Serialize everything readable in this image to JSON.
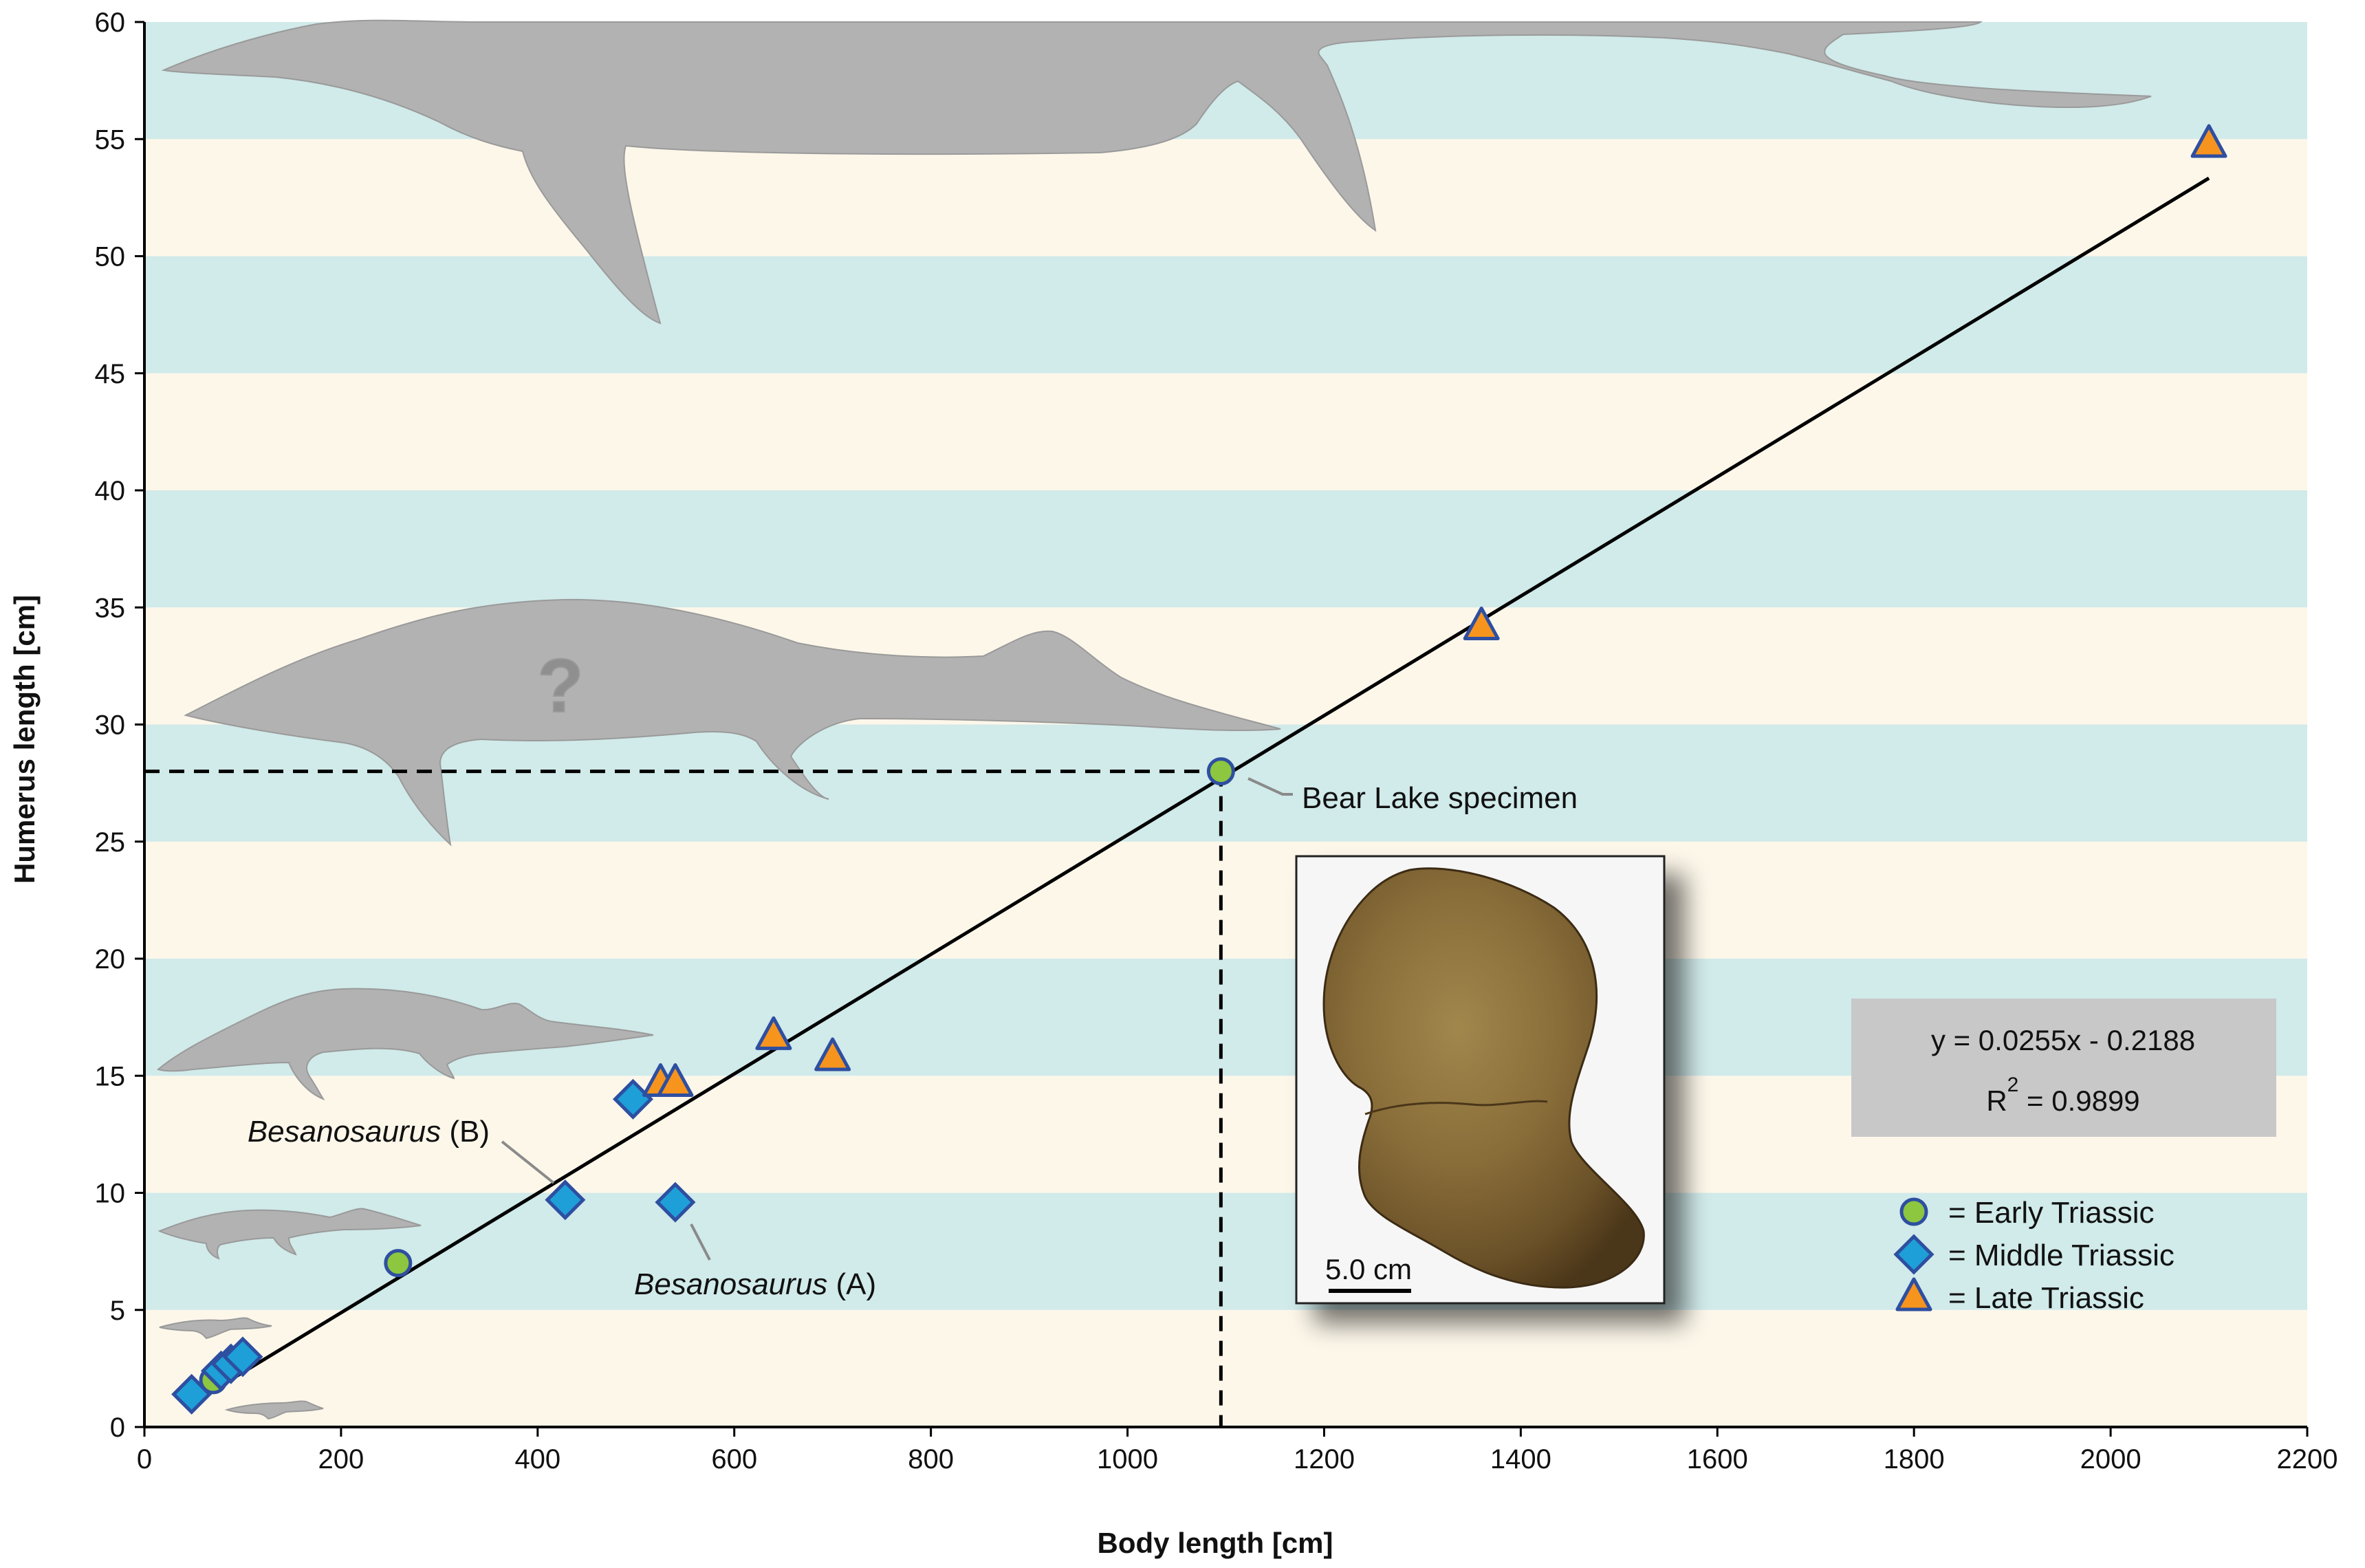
{
  "chart_data": {
    "type": "scatter",
    "xlabel": "Body length [cm]",
    "ylabel": "Humerus length [cm]",
    "xlim": [
      0,
      2200
    ],
    "ylim": [
      0,
      60
    ],
    "x_ticks": [
      "0",
      "200",
      "400",
      "600",
      "800",
      "1000",
      "1200",
      "1400",
      "1600",
      "1800",
      "2000",
      "2200"
    ],
    "y_ticks": [
      "0",
      "5",
      "10",
      "15",
      "20",
      "25",
      "30",
      "35",
      "40",
      "45",
      "50",
      "55",
      "60"
    ],
    "band_colors": [
      "#fdf7ea",
      "#d1eaea"
    ],
    "series": [
      {
        "name": "Early Triassic",
        "marker": "circle",
        "color": "#8dc63f",
        "edge_color": "#2e4fa0",
        "points": [
          [
            70,
            2.0
          ],
          [
            258,
            7.0
          ],
          [
            1095,
            28.0
          ]
        ]
      },
      {
        "name": "Middle Triassic",
        "marker": "diamond",
        "color": "#1e9fd8",
        "edge_color": "#2e4fa0",
        "points": [
          [
            48,
            1.4
          ],
          [
            78,
            2.4
          ],
          [
            88,
            2.7
          ],
          [
            100,
            3.0
          ],
          [
            428,
            9.7
          ],
          [
            497,
            14.0
          ],
          [
            540,
            9.6
          ]
        ]
      },
      {
        "name": "Late Triassic",
        "marker": "triangle",
        "color": "#f7941d",
        "edge_color": "#2e4fa0",
        "points": [
          [
            525,
            14.7
          ],
          [
            540,
            14.7
          ],
          [
            640,
            16.7
          ],
          [
            700,
            15.8
          ],
          [
            1360,
            34.2
          ],
          [
            2100,
            54.8
          ]
        ]
      }
    ],
    "trendline": {
      "slope": 0.0255,
      "intercept": -0.2188,
      "x_range": [
        48,
        2100
      ],
      "equation": "y = 0.0255x - 0.2188",
      "r2_prefix": "R",
      "r2_power": "2",
      "r2_value": " = 0.9899"
    },
    "reference": {
      "x": 1095,
      "y": 28.0
    },
    "annotations": {
      "bear_lake": "Bear Lake specimen",
      "besano_b_name": "Besanosaurus",
      "besano_b_suffix": " (B)",
      "besano_a_name": "Besanosaurus",
      "besano_a_suffix": " (A)",
      "question_mark": "?"
    },
    "legend": {
      "position": "bottom-right",
      "items": [
        {
          "label": "= Early Triassic",
          "marker": "circle"
        },
        {
          "label": "= Middle Triassic",
          "marker": "diamond"
        },
        {
          "label": "= Late Triassic",
          "marker": "triangle"
        }
      ]
    },
    "inset_photo": {
      "scale_label": "5.0 cm"
    }
  }
}
